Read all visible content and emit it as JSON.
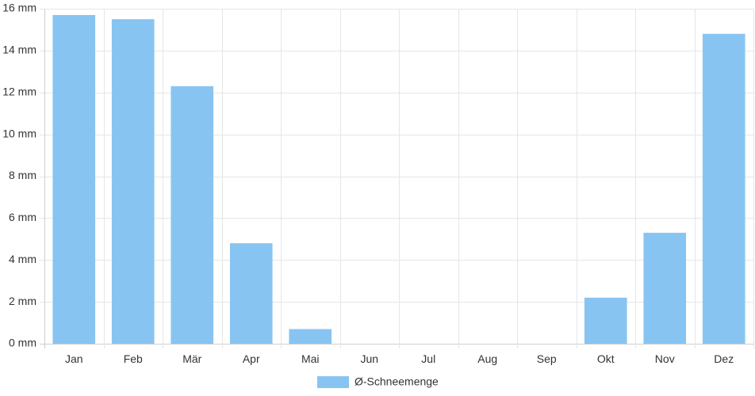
{
  "chart_data": {
    "type": "bar",
    "categories": [
      "Jan",
      "Feb",
      "Mär",
      "Apr",
      "Mai",
      "Jun",
      "Jul",
      "Aug",
      "Sep",
      "Okt",
      "Nov",
      "Dez"
    ],
    "series": [
      {
        "name": "Ø-Schneemenge",
        "values": [
          15.7,
          15.5,
          12.3,
          4.8,
          0.7,
          0,
          0,
          0,
          0,
          2.2,
          5.3,
          14.8
        ],
        "color": "#88c4f1"
      }
    ],
    "ylim": [
      0,
      16
    ],
    "yticks": [
      0,
      2,
      4,
      6,
      8,
      10,
      12,
      14,
      16
    ],
    "y_unit": "mm",
    "y_tick_labels": [
      "0 mm",
      "2 mm",
      "4 mm",
      "6 mm",
      "8 mm",
      "10 mm",
      "12 mm",
      "14 mm",
      "16 mm"
    ],
    "grid": true,
    "legend_position": "bottom"
  }
}
